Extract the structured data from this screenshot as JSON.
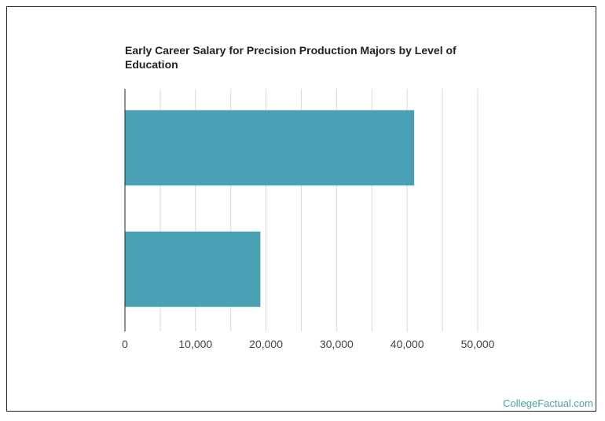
{
  "chart_data": {
    "type": "bar",
    "orientation": "horizontal",
    "title": "Early Career Salary for Precision Production Majors by Level of Education",
    "categories": [
      "",
      ""
    ],
    "values": [
      41000,
      19200
    ],
    "xlabel": "",
    "ylabel": "",
    "xlim": [
      0,
      50000
    ],
    "x_ticks": [
      0,
      10000,
      20000,
      30000,
      40000,
      50000
    ],
    "x_tick_labels": [
      "0",
      "10,000",
      "20,000",
      "30,000",
      "40,000",
      "50,000"
    ],
    "grid": true,
    "bar_color": "#4aa1b5",
    "grid_color": "#d9d9d9"
  },
  "watermark": "CollegeFactual.com"
}
